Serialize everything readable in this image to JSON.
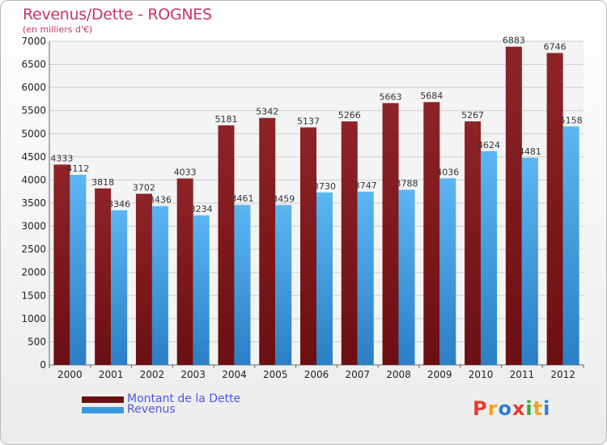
{
  "header": {
    "title": "Revenus/Dette - ROGNES",
    "subtitle": "(en milliers d'€)"
  },
  "colors": {
    "dette": "#6b0f12",
    "revenus": "#3a9ae0",
    "title": "#c8346a",
    "legend_text": "#4d55e0",
    "grid": "#cccccc"
  },
  "legend": {
    "dette_label": "Montant de la Dette",
    "revenus_label": "Revenus"
  },
  "logo": {
    "text": "Proxiti",
    "letter_colors": [
      "#e63b2e",
      "#f4a21c",
      "#2d7fd3",
      "#e63b2e",
      "#3aa83a",
      "#f4a21c",
      "#2d7fd3"
    ]
  },
  "chart_data": {
    "type": "bar",
    "title": "Revenus/Dette - ROGNES",
    "ylabel": "(en milliers d'€)",
    "xlabel": "",
    "ylim": [
      0,
      7000
    ],
    "yticks": [
      0,
      500,
      1000,
      1500,
      2000,
      2500,
      3000,
      3500,
      4000,
      4500,
      5000,
      5500,
      6000,
      6500,
      7000
    ],
    "grid": true,
    "legend_position": "bottom-left",
    "categories": [
      "2000",
      "2001",
      "2002",
      "2003",
      "2004",
      "2005",
      "2006",
      "2007",
      "2008",
      "2009",
      "2010",
      "2011",
      "2012"
    ],
    "series": [
      {
        "name": "Montant de la Dette",
        "values": [
          4333,
          3818,
          3702,
          4033,
          5181,
          5342,
          5137,
          5266,
          5663,
          5684,
          5267,
          6883,
          6746
        ]
      },
      {
        "name": "Revenus",
        "values": [
          4112,
          3346,
          3436,
          3234,
          3461,
          3459,
          3730,
          3747,
          3788,
          4036,
          4624,
          4481,
          5158
        ]
      }
    ]
  }
}
